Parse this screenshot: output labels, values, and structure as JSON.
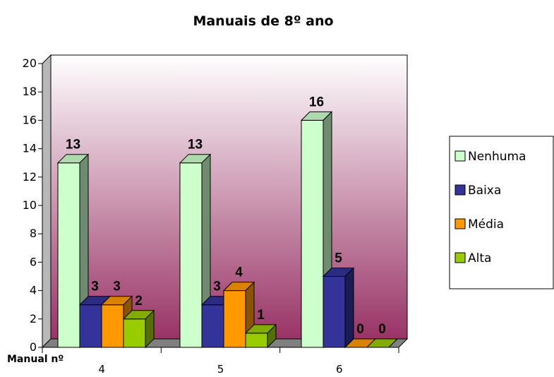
{
  "chart_data": {
    "type": "bar",
    "title": "Manuais de 8º ano",
    "xlabel": "Manual nº",
    "ylabel": "",
    "ylim": [
      0,
      20
    ],
    "yticks": [
      0,
      2,
      4,
      6,
      8,
      10,
      12,
      14,
      16,
      18,
      20
    ],
    "categories": [
      "4",
      "5",
      "6"
    ],
    "series": [
      {
        "name": "Nenhuma",
        "values": [
          13,
          13,
          16
        ],
        "color": "#ccffcc"
      },
      {
        "name": "Baixa",
        "values": [
          3,
          3,
          5
        ],
        "color": "#333399"
      },
      {
        "name": "Média",
        "values": [
          3,
          4,
          0
        ],
        "color": "#ff9900"
      },
      {
        "name": "Alta",
        "values": [
          2,
          1,
          0
        ],
        "color": "#99cc00"
      }
    ],
    "legend_position": "right",
    "grid": false,
    "style": "3d-clustered-column"
  }
}
